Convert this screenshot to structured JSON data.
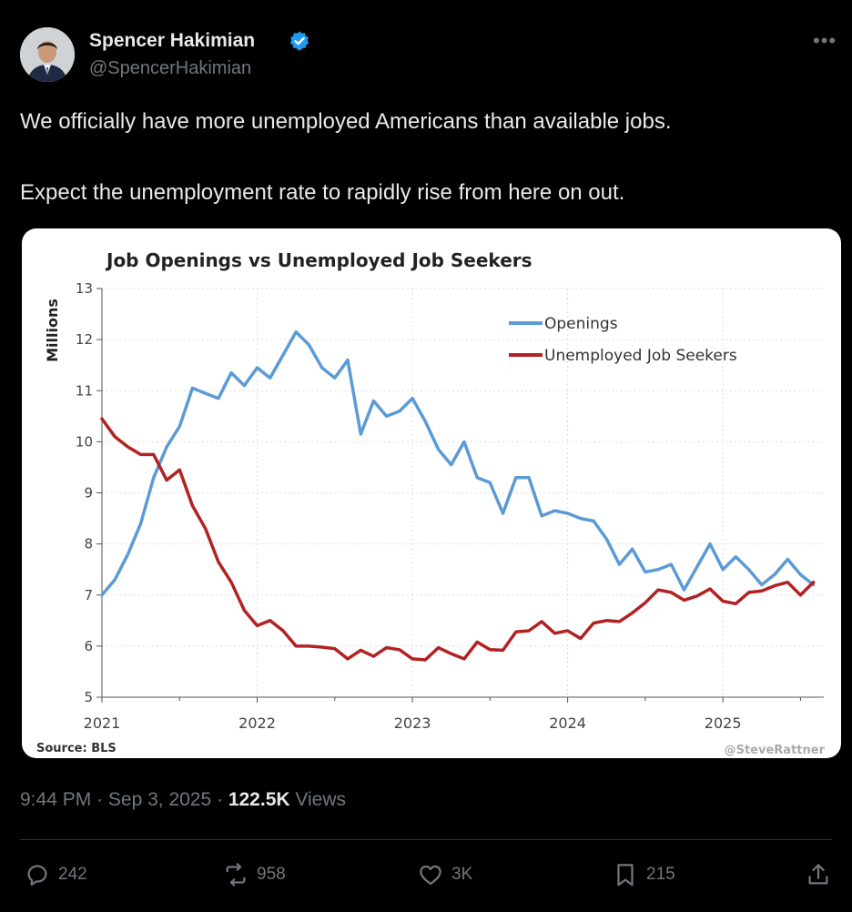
{
  "author": {
    "name": "Spencer Hakimian",
    "handle": "@SpencerHakimian",
    "verified_color": "#1d9bf0"
  },
  "tweet": {
    "line1": "We officially have more unemployed Americans than available jobs.",
    "line2": "Expect the unemployment rate to rapidly rise from here on out."
  },
  "chart_data": {
    "type": "line",
    "title": "Job Openings vs Unemployed Job Seekers",
    "ylabel": "Millions",
    "xlabel": "",
    "xlim": [
      2021.0,
      2025.65
    ],
    "ylim": [
      5,
      13
    ],
    "x_ticks": [
      2021,
      2022,
      2023,
      2024,
      2025
    ],
    "y_ticks": [
      5,
      6,
      7,
      8,
      9,
      10,
      11,
      12,
      13
    ],
    "grid": true,
    "legend_position": "top-right",
    "source": "Source: BLS",
    "credit": "@SteveRattner",
    "series": [
      {
        "name": "Openings",
        "color": "#5b9bd5",
        "points": [
          [
            2021.0,
            7.0
          ],
          [
            2021.083,
            7.3
          ],
          [
            2021.167,
            7.8
          ],
          [
            2021.25,
            8.4
          ],
          [
            2021.333,
            9.3
          ],
          [
            2021.417,
            9.9
          ],
          [
            2021.5,
            10.3
          ],
          [
            2021.583,
            11.05
          ],
          [
            2021.667,
            10.95
          ],
          [
            2021.75,
            10.85
          ],
          [
            2021.833,
            11.35
          ],
          [
            2021.917,
            11.1
          ],
          [
            2022.0,
            11.45
          ],
          [
            2022.083,
            11.25
          ],
          [
            2022.167,
            11.7
          ],
          [
            2022.25,
            12.15
          ],
          [
            2022.333,
            11.9
          ],
          [
            2022.417,
            11.45
          ],
          [
            2022.5,
            11.25
          ],
          [
            2022.583,
            11.6
          ],
          [
            2022.667,
            10.15
          ],
          [
            2022.75,
            10.8
          ],
          [
            2022.833,
            10.5
          ],
          [
            2022.917,
            10.6
          ],
          [
            2023.0,
            10.85
          ],
          [
            2023.083,
            10.4
          ],
          [
            2023.167,
            9.85
          ],
          [
            2023.25,
            9.55
          ],
          [
            2023.333,
            10.0
          ],
          [
            2023.417,
            9.3
          ],
          [
            2023.5,
            9.2
          ],
          [
            2023.583,
            8.6
          ],
          [
            2023.667,
            9.3
          ],
          [
            2023.75,
            9.3
          ],
          [
            2023.833,
            8.55
          ],
          [
            2023.917,
            8.65
          ],
          [
            2024.0,
            8.6
          ],
          [
            2024.083,
            8.5
          ],
          [
            2024.167,
            8.45
          ],
          [
            2024.25,
            8.1
          ],
          [
            2024.333,
            7.6
          ],
          [
            2024.417,
            7.9
          ],
          [
            2024.5,
            7.45
          ],
          [
            2024.583,
            7.5
          ],
          [
            2024.667,
            7.6
          ],
          [
            2024.75,
            7.1
          ],
          [
            2024.833,
            7.55
          ],
          [
            2024.917,
            8.0
          ],
          [
            2025.0,
            7.5
          ],
          [
            2025.083,
            7.75
          ],
          [
            2025.167,
            7.5
          ],
          [
            2025.25,
            7.2
          ],
          [
            2025.333,
            7.4
          ],
          [
            2025.417,
            7.7
          ],
          [
            2025.5,
            7.4
          ],
          [
            2025.583,
            7.2
          ]
        ]
      },
      {
        "name": "Unemployed Job Seekers",
        "color": "#b22222",
        "points": [
          [
            2021.0,
            10.45
          ],
          [
            2021.083,
            10.1
          ],
          [
            2021.167,
            9.9
          ],
          [
            2021.25,
            9.75
          ],
          [
            2021.333,
            9.75
          ],
          [
            2021.417,
            9.25
          ],
          [
            2021.5,
            9.45
          ],
          [
            2021.583,
            8.75
          ],
          [
            2021.667,
            8.3
          ],
          [
            2021.75,
            7.65
          ],
          [
            2021.833,
            7.25
          ],
          [
            2021.917,
            6.7
          ],
          [
            2022.0,
            6.4
          ],
          [
            2022.083,
            6.5
          ],
          [
            2022.167,
            6.3
          ],
          [
            2022.25,
            6.0
          ],
          [
            2022.333,
            6.0
          ],
          [
            2022.417,
            5.98
          ],
          [
            2022.5,
            5.95
          ],
          [
            2022.583,
            5.75
          ],
          [
            2022.667,
            5.92
          ],
          [
            2022.75,
            5.8
          ],
          [
            2022.833,
            5.97
          ],
          [
            2022.917,
            5.93
          ],
          [
            2023.0,
            5.75
          ],
          [
            2023.083,
            5.73
          ],
          [
            2023.167,
            5.97
          ],
          [
            2023.25,
            5.85
          ],
          [
            2023.333,
            5.75
          ],
          [
            2023.417,
            6.08
          ],
          [
            2023.5,
            5.93
          ],
          [
            2023.583,
            5.92
          ],
          [
            2023.667,
            6.28
          ],
          [
            2023.75,
            6.3
          ],
          [
            2023.833,
            6.48
          ],
          [
            2023.917,
            6.25
          ],
          [
            2024.0,
            6.3
          ],
          [
            2024.083,
            6.15
          ],
          [
            2024.167,
            6.45
          ],
          [
            2024.25,
            6.5
          ],
          [
            2024.333,
            6.48
          ],
          [
            2024.417,
            6.65
          ],
          [
            2024.5,
            6.85
          ],
          [
            2024.583,
            7.1
          ],
          [
            2024.667,
            7.05
          ],
          [
            2024.75,
            6.9
          ],
          [
            2024.833,
            6.98
          ],
          [
            2024.917,
            7.12
          ],
          [
            2025.0,
            6.88
          ],
          [
            2025.083,
            6.83
          ],
          [
            2025.167,
            7.05
          ],
          [
            2025.25,
            7.08
          ],
          [
            2025.333,
            7.18
          ],
          [
            2025.417,
            7.25
          ],
          [
            2025.5,
            7.0
          ],
          [
            2025.583,
            7.25
          ]
        ]
      }
    ]
  },
  "meta": {
    "time": "9:44 PM",
    "separator": " · ",
    "date": "Sep 3, 2025",
    "views_count": "122.5K",
    "views_label": " Views"
  },
  "actions": {
    "replies": "242",
    "reposts": "958",
    "likes": "3K",
    "bookmarks": "215"
  },
  "icons": {
    "more": "more-horizontal-icon",
    "reply": "reply-icon",
    "repost": "repost-icon",
    "like": "heart-icon",
    "bookmark": "bookmark-icon",
    "share": "share-icon"
  }
}
